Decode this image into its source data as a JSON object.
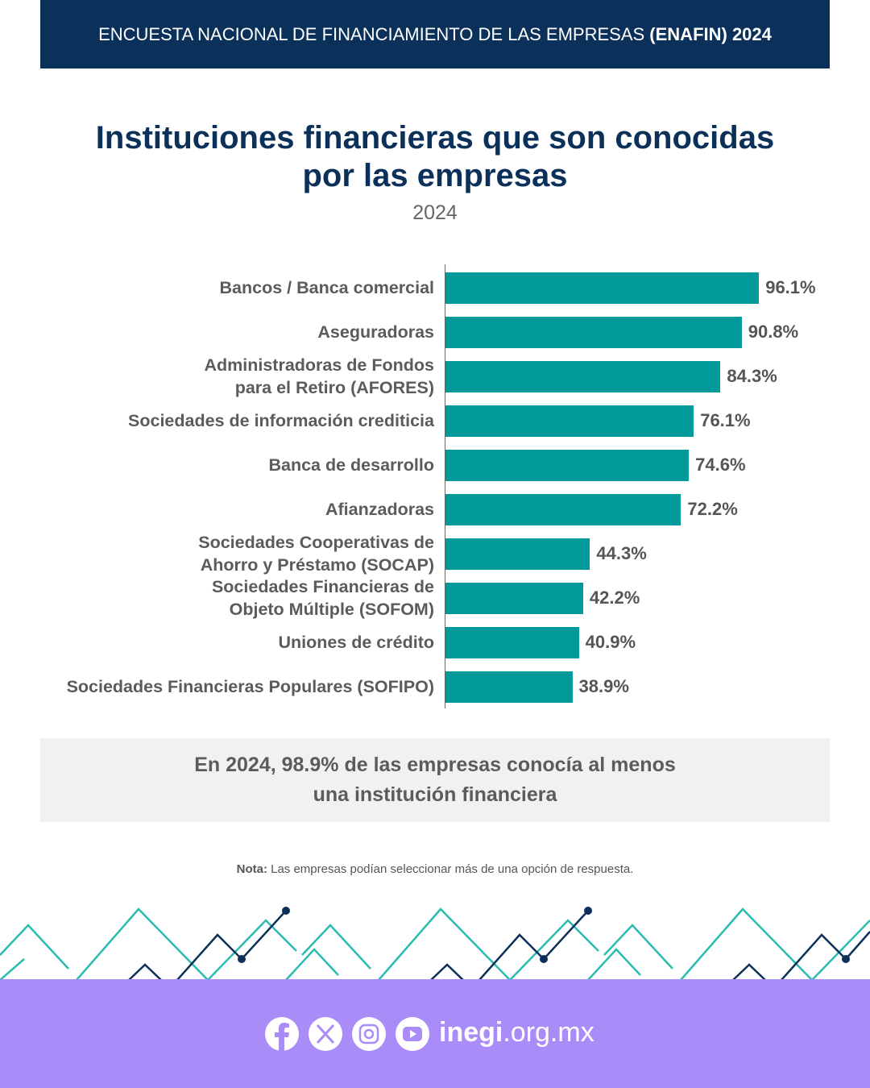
{
  "header": {
    "text": "ENCUESTA NACIONAL DE FINANCIAMIENTO DE LAS EMPRESAS",
    "bold": "(ENAFIN) 2024"
  },
  "chart_data": {
    "type": "hbar",
    "title": "Instituciones financieras que son conocidas\npor las empresas",
    "subtitle": "2024",
    "categories": [
      "Bancos / Banca comercial",
      "Aseguradoras",
      "Administradoras de Fondos\npara el Retiro (AFORES)",
      "Sociedades de información crediticia",
      "Banca de desarrollo",
      "Afianzadoras",
      "Sociedades Cooperativas de\nAhorro y Préstamo (SOCAP)",
      "Sociedades Financieras de\nObjeto Múltiple (SOFOM)",
      "Uniones de crédito",
      "Sociedades Financieras Populares (SOFIPO)"
    ],
    "values": [
      96.1,
      90.8,
      84.3,
      76.1,
      74.6,
      72.2,
      44.3,
      42.2,
      40.9,
      38.9
    ],
    "value_labels": [
      "96.1%",
      "90.8%",
      "84.3%",
      "76.1%",
      "74.6%",
      "72.2%",
      "44.3%",
      "42.2%",
      "40.9%",
      "38.9%"
    ],
    "color": "#009a9b"
  },
  "callout": "En 2024, 98.9% de las empresas conocía al menos\nuna institución financiera",
  "note": {
    "label": "Nota:",
    "text": "Las empresas podían seleccionar más de una opción de respuesta."
  },
  "footer": {
    "site_bold": "inegi",
    "site_rest": ".org.mx"
  }
}
